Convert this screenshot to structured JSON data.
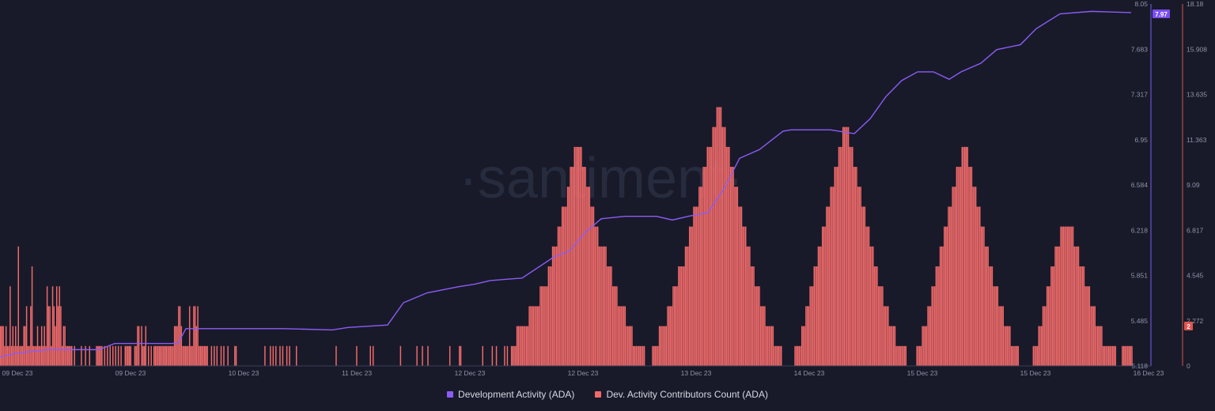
{
  "chart_data": {
    "type": "bar",
    "watermark": "·santiment·",
    "x_ticks": [
      "09 Dec 23",
      "09 Dec 23",
      "10 Dec 23",
      "11 Dec 23",
      "12 Dec 23",
      "12 Dec 23",
      "13 Dec 23",
      "14 Dec 23",
      "15 Dec 23",
      "15 Dec 23",
      "16 Dec 23"
    ],
    "y_left_ticks": [
      "8.05",
      "7.683",
      "7.317",
      "6.95",
      "6.584",
      "6.218",
      "5.851",
      "5.485",
      "5.118"
    ],
    "y_right_ticks": [
      "18.18",
      "15.908",
      "13.635",
      "11.363",
      "9.09",
      "6.817",
      "4.545",
      "2.272",
      "0"
    ],
    "ylim_left": [
      5.118,
      8.05
    ],
    "ylim_right": [
      0,
      18.18
    ],
    "grid": false,
    "legend_position": "bottom-center",
    "series": [
      {
        "name": "Development Activity (ADA)",
        "type": "line",
        "axis": "left",
        "color": "#8c5cf6",
        "current_value_label": "7.97",
        "keypoints": [
          [
            0,
            5.19
          ],
          [
            20,
            5.22
          ],
          [
            60,
            5.25
          ],
          [
            125,
            5.25
          ],
          [
            145,
            5.3
          ],
          [
            225,
            5.3
          ],
          [
            235,
            5.42
          ],
          [
            300,
            5.42
          ],
          [
            360,
            5.42
          ],
          [
            420,
            5.41
          ],
          [
            440,
            5.43
          ],
          [
            490,
            5.45
          ],
          [
            510,
            5.63
          ],
          [
            540,
            5.71
          ],
          [
            580,
            5.76
          ],
          [
            600,
            5.78
          ],
          [
            620,
            5.81
          ],
          [
            660,
            5.83
          ],
          [
            700,
            6.0
          ],
          [
            720,
            6.05
          ],
          [
            740,
            6.2
          ],
          [
            760,
            6.31
          ],
          [
            790,
            6.33
          ],
          [
            830,
            6.33
          ],
          [
            850,
            6.3
          ],
          [
            870,
            6.33
          ],
          [
            895,
            6.36
          ],
          [
            915,
            6.55
          ],
          [
            935,
            6.8
          ],
          [
            960,
            6.87
          ],
          [
            990,
            7.02
          ],
          [
            1000,
            7.03
          ],
          [
            1050,
            7.03
          ],
          [
            1080,
            7.0
          ],
          [
            1100,
            7.12
          ],
          [
            1120,
            7.3
          ],
          [
            1140,
            7.43
          ],
          [
            1160,
            7.5
          ],
          [
            1180,
            7.5
          ],
          [
            1200,
            7.44
          ],
          [
            1215,
            7.5
          ],
          [
            1240,
            7.57
          ],
          [
            1260,
            7.68
          ],
          [
            1290,
            7.72
          ],
          [
            1310,
            7.85
          ],
          [
            1340,
            7.97
          ],
          [
            1380,
            7.99
          ],
          [
            1430,
            7.98
          ]
        ]
      },
      {
        "name": "Dev. Activity Contributors Count (ADA)",
        "type": "bar",
        "axis": "right",
        "color": "#f06a6a",
        "current_value_label": "2",
        "values": [
          2,
          2,
          2,
          1,
          2,
          1,
          1,
          4,
          1,
          2,
          1,
          2,
          1,
          6,
          1,
          1,
          1,
          2,
          2,
          3,
          1,
          1,
          3,
          5,
          1,
          1,
          1,
          2,
          1,
          1,
          2,
          1,
          2,
          1,
          4,
          3,
          3,
          1,
          4,
          3,
          2,
          4,
          3,
          4,
          3,
          1,
          2,
          2,
          1,
          1,
          1,
          1,
          1,
          0,
          1,
          0,
          0,
          0,
          0,
          1,
          0,
          0,
          1,
          0,
          0,
          1,
          0,
          0,
          0,
          0,
          1,
          1,
          1,
          1,
          1,
          0,
          1,
          0,
          1,
          0,
          1,
          0,
          1,
          0,
          1,
          0,
          1,
          0,
          1,
          0,
          0,
          1,
          1,
          1,
          1,
          1,
          0,
          0,
          1,
          1,
          2,
          2,
          0,
          2,
          1,
          1,
          2,
          0,
          1,
          0,
          1,
          0,
          1,
          1,
          1,
          1,
          1,
          1,
          1,
          1,
          1,
          1,
          1,
          1,
          1,
          1,
          1,
          2,
          2,
          2,
          3,
          3,
          2,
          1,
          1,
          1,
          1,
          1,
          3,
          1,
          1,
          3,
          3,
          2,
          3,
          1,
          1,
          1,
          1,
          1,
          1,
          1,
          0,
          0,
          1,
          0,
          1,
          0,
          1,
          0,
          0,
          1,
          0,
          1,
          0,
          0,
          1,
          0,
          0,
          0,
          0,
          1,
          1,
          0,
          0,
          0,
          0,
          0,
          0,
          0,
          0,
          0,
          0,
          0,
          0,
          0,
          0,
          0,
          0,
          0,
          0,
          0,
          0,
          1,
          0,
          0,
          0,
          1,
          0,
          1,
          0,
          1,
          0,
          0,
          1,
          0,
          1,
          0,
          0,
          1,
          0,
          1,
          0,
          0,
          0,
          0,
          1,
          0,
          0,
          0,
          0,
          0,
          0,
          0,
          0,
          0,
          0,
          0,
          0,
          0,
          0,
          0,
          0,
          0,
          0,
          0,
          0,
          0,
          0,
          0,
          0,
          0,
          0,
          0,
          0,
          1,
          0,
          0,
          0,
          0,
          0,
          0,
          0,
          0,
          0,
          0,
          0,
          0,
          0,
          0,
          1,
          0,
          0,
          0,
          0,
          0,
          0,
          0,
          0,
          0,
          1,
          0,
          1,
          0,
          0,
          0,
          0,
          0,
          0,
          0,
          0,
          0,
          0,
          0,
          0,
          0,
          0,
          0,
          0,
          0,
          0,
          0,
          1,
          0,
          0,
          0,
          0,
          0,
          0,
          0,
          0,
          0,
          0,
          0,
          1,
          0,
          0,
          0,
          1,
          0,
          0,
          0,
          1,
          0,
          0,
          0,
          0,
          0,
          0,
          0,
          0,
          0,
          0,
          0,
          0,
          0,
          0,
          0,
          1,
          0,
          0,
          0,
          0,
          0,
          0,
          1,
          1,
          0,
          0,
          0,
          0,
          0,
          0,
          0,
          0,
          0,
          0,
          0,
          0,
          0,
          0,
          0,
          1,
          0,
          0,
          0,
          0,
          0,
          0,
          1,
          0,
          0,
          1,
          0,
          0,
          0,
          0,
          0,
          1,
          0,
          1,
          0,
          0,
          1,
          1,
          1,
          1,
          2,
          2,
          2,
          2,
          2,
          2,
          2,
          2,
          2,
          3,
          3,
          3,
          3,
          3,
          3,
          3,
          3,
          4,
          4,
          4,
          4,
          4,
          4,
          5,
          5,
          5,
          6,
          6,
          6,
          6,
          7,
          7,
          7,
          8,
          8,
          8,
          8,
          9,
          9,
          10,
          10,
          10,
          11,
          11,
          11,
          11,
          11,
          11,
          10,
          10,
          10,
          9,
          9,
          9,
          8,
          8,
          8,
          7,
          7,
          7,
          6,
          6,
          6,
          6,
          6,
          6,
          5,
          5,
          5,
          5,
          4,
          4,
          4,
          4,
          3,
          3,
          3,
          3,
          3,
          3,
          2,
          2,
          2,
          2,
          2,
          1,
          1,
          1,
          1,
          1,
          1,
          1,
          1,
          1,
          0,
          0,
          0,
          0,
          0,
          1,
          1,
          1,
          1,
          1,
          2,
          2,
          2,
          2,
          2,
          2,
          3,
          3,
          3,
          3,
          4,
          4,
          4,
          4,
          5,
          5,
          5,
          5,
          5,
          6,
          6,
          6,
          7,
          7,
          7,
          8,
          8,
          8,
          8,
          9,
          9,
          9,
          10,
          10,
          10,
          11,
          11,
          11,
          11,
          12,
          12,
          12,
          13,
          13,
          13,
          13,
          12,
          12,
          12,
          11,
          11,
          11,
          10,
          10,
          10,
          9,
          9,
          9,
          8,
          8,
          8,
          7,
          7,
          7,
          6,
          6,
          6,
          5,
          5,
          5,
          4,
          4,
          4,
          4,
          3,
          3,
          3,
          3,
          2,
          2,
          2,
          2,
          2,
          2,
          1,
          1,
          1,
          1,
          1,
          1,
          0,
          0,
          0,
          0,
          0,
          0,
          0,
          0,
          0,
          1,
          1,
          1,
          1,
          1,
          2,
          2,
          2,
          3,
          3,
          3,
          4,
          4,
          4,
          5,
          5,
          5,
          6,
          6,
          6,
          7,
          7,
          7,
          8,
          8,
          8,
          9,
          9,
          9,
          10,
          10,
          10,
          11,
          11,
          11,
          12,
          12,
          12,
          12,
          12,
          11,
          11,
          11,
          10,
          10,
          10,
          9,
          9,
          9,
          8,
          8,
          8,
          7,
          7,
          7,
          6,
          6,
          6,
          5,
          5,
          5,
          4,
          4,
          4,
          4,
          3,
          3,
          3,
          3,
          2,
          2,
          2,
          2,
          2,
          1,
          1,
          1,
          1,
          1,
          1,
          1,
          1,
          0,
          0,
          0,
          0,
          0,
          0,
          0,
          1,
          1,
          1,
          1,
          2,
          2,
          2,
          2,
          3,
          3,
          3,
          4,
          4,
          4,
          5,
          5,
          5,
          6,
          6,
          6,
          7,
          7,
          7,
          8,
          8,
          8,
          9,
          9,
          9,
          10,
          10,
          10,
          10,
          11,
          11,
          11,
          11,
          11,
          10,
          10,
          10,
          9,
          9,
          9,
          8,
          8,
          8,
          7,
          7,
          7,
          6,
          6,
          6,
          5,
          5,
          5,
          4,
          4,
          4,
          4,
          3,
          3,
          3,
          3,
          2,
          2,
          2,
          2,
          2,
          1,
          1,
          1,
          1,
          1,
          1,
          0,
          0,
          0,
          0,
          0,
          0,
          0,
          0,
          0,
          0,
          1,
          1,
          1,
          1,
          2,
          2,
          2,
          3,
          3,
          3,
          4,
          4,
          4,
          5,
          5,
          5,
          6,
          6,
          6,
          6,
          7,
          7,
          7,
          7,
          7,
          7,
          7,
          7,
          7,
          7,
          6,
          6,
          6,
          6,
          5,
          5,
          5,
          5,
          4,
          4,
          4,
          4,
          3,
          3,
          3,
          3,
          2,
          2,
          2,
          2,
          2,
          1,
          1,
          1,
          1,
          1,
          1,
          1,
          1,
          1,
          1,
          0,
          0,
          0,
          0,
          1,
          1,
          1,
          1,
          1,
          1,
          1,
          1
        ]
      }
    ]
  },
  "legend": {
    "items": [
      {
        "label": "Development Activity (ADA)",
        "color": "#8c5cf6"
      },
      {
        "label": "Dev. Activity Contributors Count (ADA)",
        "color": "#f06a6a"
      }
    ]
  }
}
